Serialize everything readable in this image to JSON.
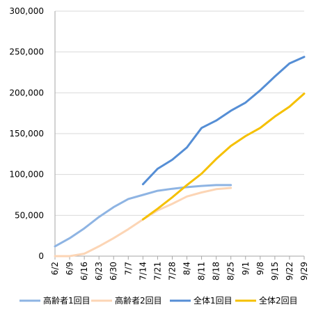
{
  "chart_data": {
    "type": "line",
    "title": "",
    "xlabel": "",
    "ylabel": "",
    "ylim": [
      0,
      300000
    ],
    "y_ticks": [
      0,
      50000,
      100000,
      150000,
      200000,
      250000,
      300000
    ],
    "y_tick_labels": [
      "0",
      "50,000",
      "100,000",
      "150,000",
      "200,000",
      "250,000",
      "300,000"
    ],
    "categories": [
      "6/2",
      "6/9",
      "6/16",
      "6/23",
      "6/30",
      "7/7",
      "7/14",
      "7/21",
      "7/28",
      "8/4",
      "8/11",
      "8/18",
      "8/25",
      "9/1",
      "9/8",
      "9/15",
      "9/22",
      "9/29"
    ],
    "grid": "horizontal",
    "legend_position": "bottom",
    "series": [
      {
        "name": "高齢者1回目",
        "color": "#8eb4e3",
        "values": [
          12000,
          22000,
          34000,
          48000,
          60000,
          70000,
          75000,
          80000,
          82500,
          84500,
          86000,
          87000,
          87000,
          null,
          null,
          null,
          null,
          null
        ]
      },
      {
        "name": "高齢者2回目",
        "color": "#fcd5b5",
        "values": [
          0,
          0,
          3000,
          12000,
          22000,
          33000,
          45000,
          56000,
          64000,
          73000,
          78000,
          82000,
          83500,
          null,
          null,
          null,
          null,
          null
        ]
      },
      {
        "name": "全体1回目",
        "color": "#558ed5",
        "values": [
          null,
          null,
          null,
          null,
          null,
          null,
          88000,
          107000,
          118000,
          133000,
          157000,
          166000,
          178000,
          188000,
          203000,
          220000,
          236000,
          244000
        ]
      },
      {
        "name": "全体2回目",
        "color": "#f5c000",
        "values": [
          null,
          null,
          null,
          null,
          null,
          null,
          45000,
          58000,
          72000,
          87000,
          101000,
          119000,
          135000,
          147000,
          157000,
          171000,
          183000,
          199000
        ]
      }
    ]
  }
}
